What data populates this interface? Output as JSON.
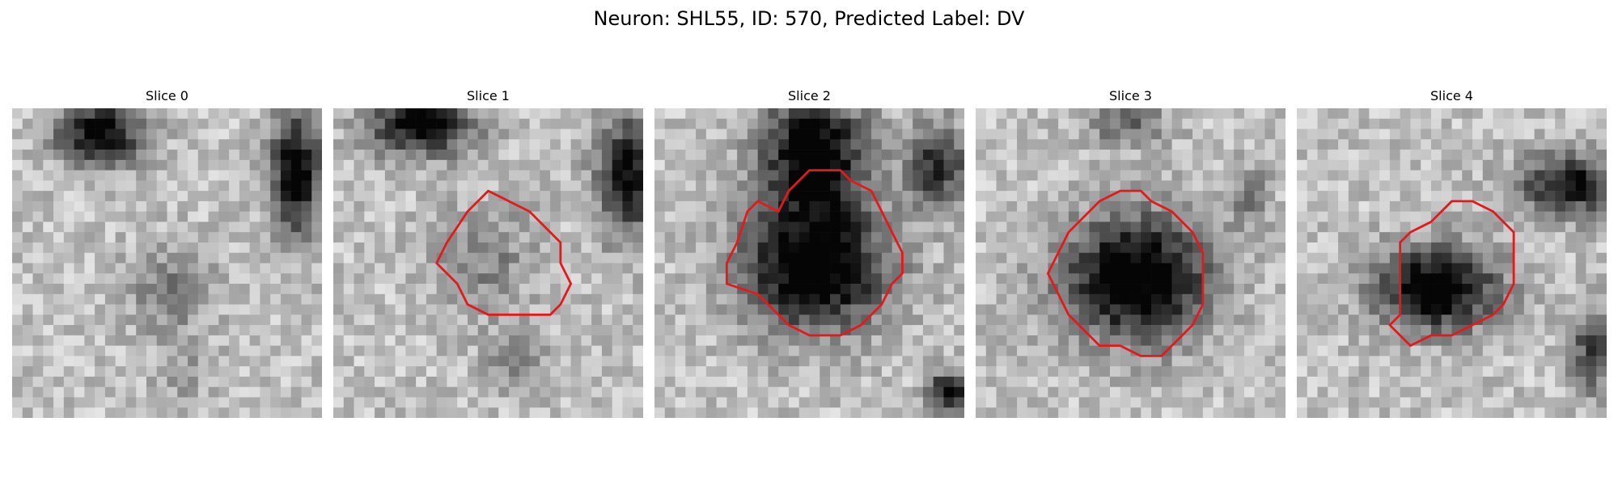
{
  "figure": {
    "title": "Neuron: SHL55, ID: 570, Predicted Label: DV",
    "contour_color": "#e31a1c",
    "colormap": "grayscale",
    "panels": [
      {
        "title": "Slice 0",
        "has_contour": false
      },
      {
        "title": "Slice 1",
        "has_contour": true
      },
      {
        "title": "Slice 2",
        "has_contour": true
      },
      {
        "title": "Slice 3",
        "has_contour": true
      },
      {
        "title": "Slice 4",
        "has_contour": true
      }
    ]
  }
}
